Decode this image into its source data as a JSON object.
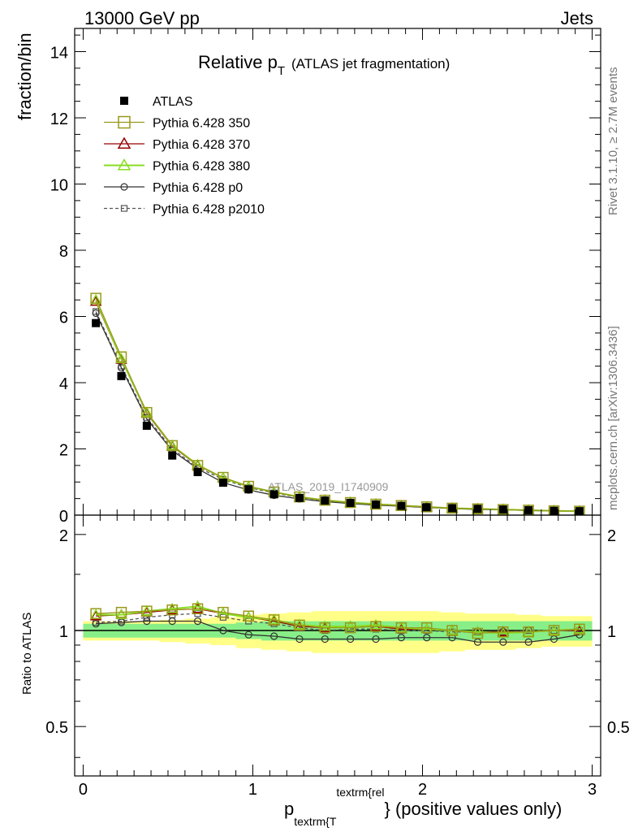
{
  "header": {
    "energy_label": "13000 GeV pp",
    "category_label": "Jets"
  },
  "side_labels": {
    "rivet": "Rivet 3.1.10, ≥ 2.7M events",
    "mcplots": "mcplots.cern.ch [arXiv:1306.3436]"
  },
  "chart_data": {
    "type": "line",
    "title_main": "Relative p",
    "title_sub": "T",
    "title_rest": "(ATLAS jet fragmentation)",
    "watermark": "ATLAS_2019_I1740909",
    "xlabel_p": "p",
    "xlabel_sub": "textrm{T",
    "xlabel_sup": "textrm{rel",
    "xlabel_rest": "} (positive values only)",
    "ylabel": "fraction/bin",
    "ratio_ylabel": "Ratio to ATLAS",
    "xlim": [
      -0.05,
      3.05
    ],
    "ylim": [
      0,
      14.7
    ],
    "ratio_ylim": [
      0.35,
      2.3
    ],
    "xticks": [
      0,
      1,
      2,
      3
    ],
    "xtick_labels": [
      "0",
      "1",
      "2",
      "3"
    ],
    "yticks": [
      0,
      2,
      4,
      6,
      8,
      10,
      12,
      14
    ],
    "ytick_labels": [
      "0",
      "2",
      "4",
      "6",
      "8",
      "10",
      "12",
      "14"
    ],
    "ratio_yticks": [
      0.5,
      1,
      2
    ],
    "ratio_ytick_labels": [
      "0.5",
      "1",
      "2"
    ],
    "x": [
      0.075,
      0.225,
      0.375,
      0.525,
      0.675,
      0.825,
      0.975,
      1.125,
      1.275,
      1.425,
      1.575,
      1.725,
      1.875,
      2.025,
      2.175,
      2.325,
      2.475,
      2.625,
      2.775,
      2.925
    ],
    "data": {
      "name": "ATLAS",
      "values": [
        5.8,
        4.2,
        2.7,
        1.8,
        1.3,
        0.98,
        0.78,
        0.63,
        0.52,
        0.44,
        0.37,
        0.32,
        0.28,
        0.24,
        0.21,
        0.19,
        0.17,
        0.15,
        0.13,
        0.12
      ]
    },
    "band_inner": [
      0.05,
      0.05,
      0.05,
      0.05,
      0.05,
      0.05,
      0.06,
      0.07,
      0.07,
      0.07,
      0.07,
      0.07,
      0.07,
      0.07,
      0.07,
      0.07,
      0.07,
      0.07,
      0.07,
      0.07
    ],
    "band_outer": [
      0.07,
      0.07,
      0.07,
      0.08,
      0.09,
      0.1,
      0.12,
      0.13,
      0.14,
      0.15,
      0.15,
      0.15,
      0.15,
      0.15,
      0.14,
      0.13,
      0.13,
      0.12,
      0.11,
      0.11
    ],
    "series": [
      {
        "name": "Pythia 6.428 350",
        "color": "#99991a",
        "marker": "square",
        "dash": false,
        "values": [
          6.55,
          4.78,
          3.1,
          2.1,
          1.5,
          1.14,
          0.87,
          0.7,
          0.55,
          0.45,
          0.38,
          0.33,
          0.29,
          0.25,
          0.21,
          0.19,
          0.17,
          0.15,
          0.13,
          0.12
        ],
        "ratio": [
          1.13,
          1.14,
          1.15,
          1.16,
          1.17,
          1.14,
          1.11,
          1.08,
          1.04,
          1.02,
          1.02,
          1.03,
          1.02,
          1.02,
          1.0,
          0.98,
          0.99,
          0.99,
          1.0,
          1.01
        ]
      },
      {
        "name": "Pythia 6.428 370",
        "color": "#990000",
        "marker": "triangle",
        "dash": false,
        "values": [
          6.45,
          4.7,
          3.07,
          2.08,
          1.5,
          1.12,
          0.86,
          0.69,
          0.54,
          0.45,
          0.38,
          0.33,
          0.28,
          0.24,
          0.21,
          0.19,
          0.17,
          0.15,
          0.13,
          0.12
        ],
        "ratio": [
          1.11,
          1.12,
          1.14,
          1.16,
          1.17,
          1.13,
          1.1,
          1.07,
          1.03,
          1.02,
          1.03,
          1.03,
          1.01,
          1.01,
          1.0,
          0.99,
          0.99,
          0.99,
          1.0,
          1.0
        ]
      },
      {
        "name": "Pythia 6.428 380",
        "color": "#88dd22",
        "marker": "triangle",
        "dash": false,
        "values": [
          6.5,
          4.72,
          3.1,
          2.1,
          1.52,
          1.12,
          0.86,
          0.7,
          0.55,
          0.45,
          0.38,
          0.33,
          0.29,
          0.25,
          0.21,
          0.19,
          0.17,
          0.15,
          0.13,
          0.12
        ],
        "ratio": [
          1.12,
          1.12,
          1.15,
          1.17,
          1.19,
          1.13,
          1.1,
          1.08,
          1.04,
          1.03,
          1.03,
          1.04,
          1.02,
          1.01,
          1.0,
          0.99,
          0.98,
          0.99,
          1.0,
          1.01
        ]
      },
      {
        "name": "Pythia 6.428 p0",
        "color": "#333333",
        "marker": "circle",
        "dash": false,
        "values": [
          6.1,
          4.45,
          2.9,
          1.95,
          1.4,
          0.98,
          0.76,
          0.6,
          0.49,
          0.41,
          0.35,
          0.3,
          0.27,
          0.23,
          0.2,
          0.17,
          0.16,
          0.14,
          0.12,
          0.12
        ],
        "ratio": [
          1.05,
          1.06,
          1.07,
          1.07,
          1.07,
          1.0,
          0.97,
          0.96,
          0.94,
          0.94,
          0.94,
          0.94,
          0.95,
          0.95,
          0.95,
          0.92,
          0.92,
          0.92,
          0.94,
          0.97
        ]
      },
      {
        "name": "Pythia 6.428 p2010",
        "color": "#555555",
        "marker": "square-small",
        "dash": true,
        "values": [
          6.15,
          4.5,
          2.95,
          2.0,
          1.44,
          1.08,
          0.83,
          0.67,
          0.53,
          0.44,
          0.37,
          0.32,
          0.28,
          0.24,
          0.21,
          0.19,
          0.17,
          0.15,
          0.13,
          0.12
        ],
        "ratio": [
          1.06,
          1.07,
          1.1,
          1.12,
          1.13,
          1.1,
          1.07,
          1.05,
          1.02,
          1.0,
          1.01,
          1.01,
          1.0,
          1.0,
          0.99,
          0.99,
          0.99,
          1.0,
          1.0,
          1.0
        ]
      }
    ]
  }
}
